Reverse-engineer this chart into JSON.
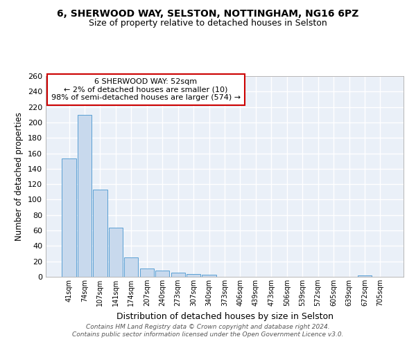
{
  "title_line1": "6, SHERWOOD WAY, SELSTON, NOTTINGHAM, NG16 6PZ",
  "title_line2": "Size of property relative to detached houses in Selston",
  "xlabel": "Distribution of detached houses by size in Selston",
  "ylabel": "Number of detached properties",
  "categories": [
    "41sqm",
    "74sqm",
    "107sqm",
    "141sqm",
    "174sqm",
    "207sqm",
    "240sqm",
    "273sqm",
    "307sqm",
    "340sqm",
    "373sqm",
    "406sqm",
    "439sqm",
    "473sqm",
    "506sqm",
    "539sqm",
    "572sqm",
    "605sqm",
    "639sqm",
    "672sqm",
    "705sqm"
  ],
  "values": [
    153,
    210,
    113,
    64,
    25,
    11,
    8,
    5,
    4,
    3,
    0,
    0,
    0,
    0,
    0,
    0,
    0,
    0,
    0,
    2,
    0
  ],
  "bar_color": "#c8d9ed",
  "bar_edge_color": "#5a9fd4",
  "bg_color": "#eaf0f8",
  "grid_color": "#ffffff",
  "annotation_text": "6 SHERWOOD WAY: 52sqm\n← 2% of detached houses are smaller (10)\n98% of semi-detached houses are larger (574) →",
  "annotation_box_edge": "#cc0000",
  "ylim": [
    0,
    260
  ],
  "yticks": [
    0,
    20,
    40,
    60,
    80,
    100,
    120,
    140,
    160,
    180,
    200,
    220,
    240,
    260
  ],
  "footer_text": "Contains HM Land Registry data © Crown copyright and database right 2024.\nContains public sector information licensed under the Open Government Licence v3.0.",
  "title_fontsize": 10,
  "subtitle_fontsize": 9
}
